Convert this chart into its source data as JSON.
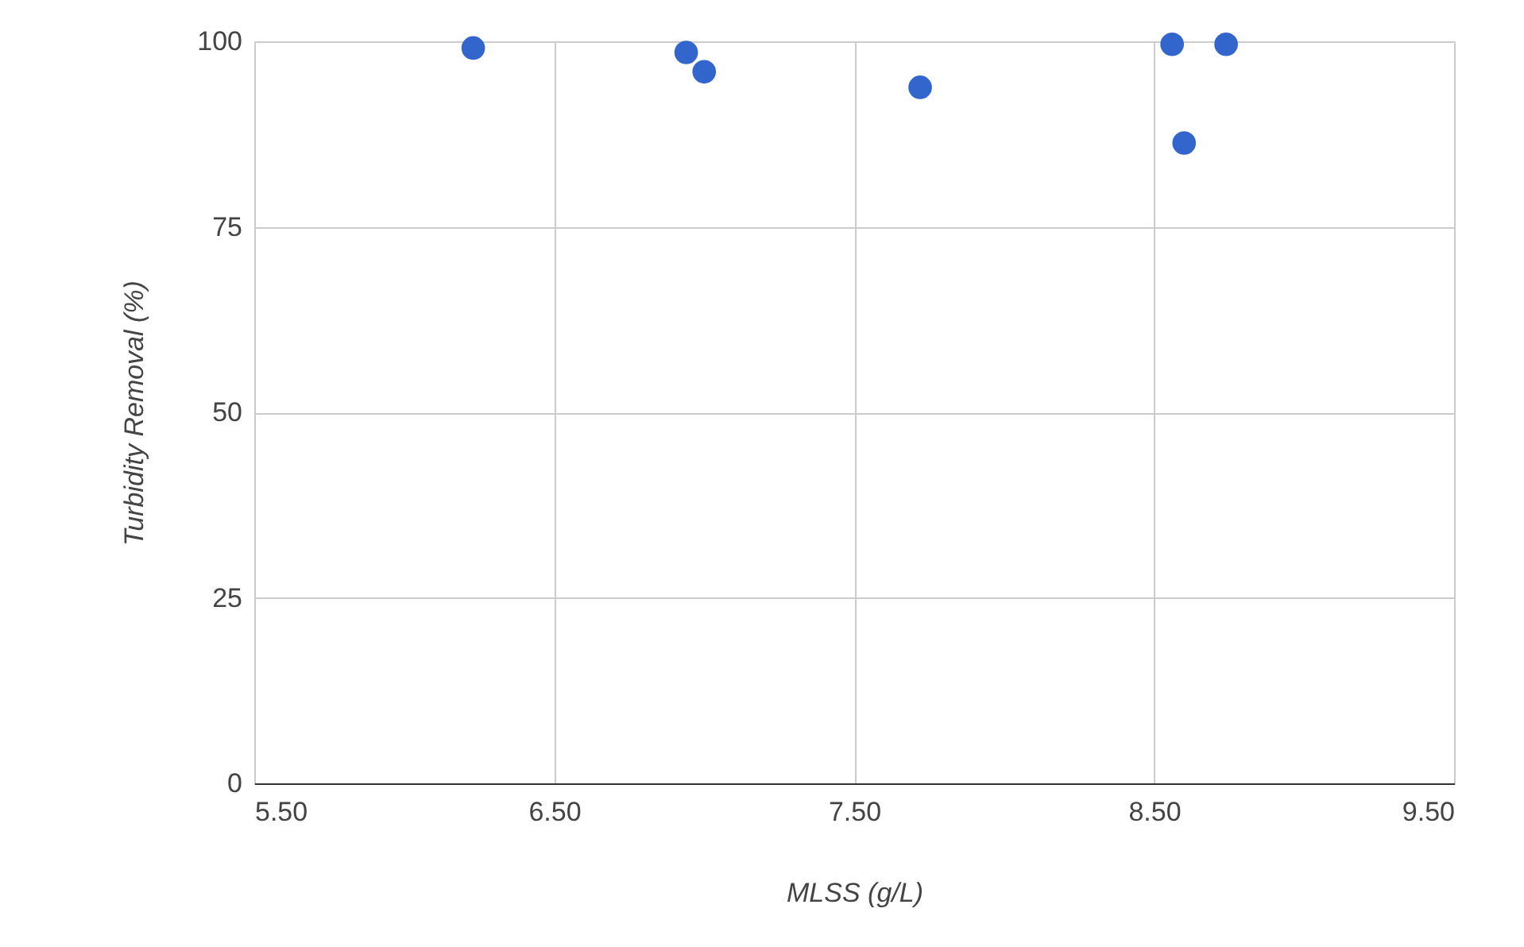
{
  "chart_data": {
    "type": "scatter",
    "xlabel": "MLSS (g/L)",
    "ylabel": "Turbidity Removal (%)",
    "x": [
      6.23,
      6.94,
      7.0,
      7.72,
      8.56,
      8.74,
      8.6
    ],
    "series": [
      {
        "color": "#3366cc",
        "values": [
          99.1,
          98.5,
          95.9,
          93.8,
          99.6,
          99.6,
          86.3
        ]
      }
    ],
    "xlim": [
      5.5,
      9.5
    ],
    "xticks": [
      {
        "value": 5.5,
        "label": "5.50"
      },
      {
        "value": 6.5,
        "label": "6.50"
      },
      {
        "value": 7.5,
        "label": "7.50"
      },
      {
        "value": 8.5,
        "label": "8.50"
      },
      {
        "value": 9.5,
        "label": "9.50"
      }
    ],
    "ylim": [
      0,
      100
    ],
    "yticks": [
      0,
      25,
      50,
      75,
      100
    ],
    "grid": true,
    "marker": "circle",
    "legend": false
  }
}
